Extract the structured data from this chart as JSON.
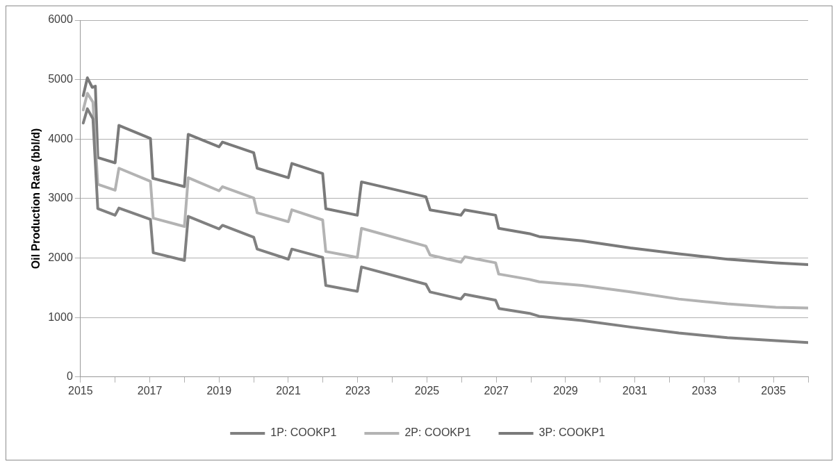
{
  "chart_data": {
    "type": "line",
    "ylabel": "Oil Production Rate (bbl/d)",
    "xlim": [
      2015,
      2036
    ],
    "xticks": [
      2015,
      {
        "value": 2016,
        "label": null
      },
      2017,
      {
        "value": 2018,
        "label": null
      },
      2019,
      {
        "value": 2020,
        "label": null
      },
      2021,
      {
        "value": 2022,
        "label": null
      },
      2023,
      {
        "value": 2024,
        "label": null
      },
      2025,
      {
        "value": 2026,
        "label": null
      },
      2027,
      {
        "value": 2028,
        "label": null
      },
      2029,
      {
        "value": 2030,
        "label": null
      },
      2031,
      {
        "value": 2032,
        "label": null
      },
      2033,
      {
        "value": 2034,
        "label": null
      },
      2035,
      {
        "value": 2036,
        "label": null
      }
    ],
    "ylim": [
      0,
      6000
    ],
    "yticks": [
      0,
      1000,
      2000,
      3000,
      4000,
      5000,
      6000
    ],
    "grid": "y",
    "legend": "bottom",
    "marker": "none",
    "line_style": "solid",
    "series": [
      {
        "name": "1P: COOKP1",
        "color": "#808080",
        "x": [
          2015.08,
          2015.2,
          2015.36,
          2015.5,
          2016.0,
          2016.11,
          2017.02,
          2017.1,
          2018.0,
          2018.11,
          2019.0,
          2019.1,
          2020.0,
          2020.1,
          2021.0,
          2021.1,
          2021.99,
          2022.08,
          2022.99,
          2023.11,
          2024.97,
          2025.09,
          2025.98,
          2026.09,
          2026.98,
          2027.08,
          2027.96,
          2028.24,
          2029.47,
          2030.87,
          2032.27,
          2033.67,
          2035.07,
          2036.0
        ],
        "values": [
          4270,
          4510,
          4340,
          2830,
          2720,
          2840,
          2650,
          2090,
          1960,
          2700,
          2490,
          2550,
          2350,
          2150,
          1980,
          2150,
          2010,
          1540,
          1440,
          1850,
          1560,
          1430,
          1310,
          1390,
          1290,
          1150,
          1070,
          1020,
          950,
          840,
          740,
          660,
          610,
          580
        ]
      },
      {
        "name": "2P: COOKP1",
        "color": "#b3b3b3",
        "x": [
          2015.08,
          2015.2,
          2015.36,
          2015.5,
          2016.0,
          2016.11,
          2017.02,
          2017.1,
          2018.0,
          2018.11,
          2019.0,
          2019.1,
          2020.0,
          2020.1,
          2021.0,
          2021.1,
          2021.99,
          2022.08,
          2022.99,
          2023.11,
          2024.97,
          2025.09,
          2025.98,
          2026.09,
          2026.98,
          2027.07,
          2027.96,
          2028.24,
          2029.47,
          2030.87,
          2032.27,
          2033.67,
          2035.07,
          2036.0
        ],
        "values": [
          4490,
          4770,
          4620,
          3240,
          3140,
          3510,
          3290,
          2670,
          2530,
          3350,
          3130,
          3200,
          3010,
          2760,
          2610,
          2810,
          2640,
          2110,
          2010,
          2500,
          2200,
          2050,
          1930,
          2020,
          1920,
          1730,
          1640,
          1600,
          1540,
          1430,
          1310,
          1230,
          1170,
          1160
        ]
      },
      {
        "name": "3P: COOKP1",
        "color": "#7a7a7a",
        "x": [
          2015.08,
          2015.2,
          2015.34,
          2015.43,
          2015.5,
          2016.0,
          2016.11,
          2017.02,
          2017.09,
          2018.0,
          2018.11,
          2019.0,
          2019.1,
          2020.0,
          2020.1,
          2021.0,
          2021.1,
          2021.99,
          2022.08,
          2022.99,
          2023.11,
          2024.97,
          2025.09,
          2025.98,
          2026.09,
          2026.98,
          2027.07,
          2027.96,
          2028.24,
          2029.47,
          2030.87,
          2032.27,
          2033.67,
          2035.07,
          2036.0
        ],
        "values": [
          4730,
          5030,
          4870,
          4890,
          3690,
          3600,
          4230,
          4010,
          3340,
          3200,
          4080,
          3870,
          3950,
          3770,
          3510,
          3350,
          3590,
          3420,
          2830,
          2720,
          3280,
          3030,
          2810,
          2720,
          2810,
          2720,
          2500,
          2410,
          2360,
          2290,
          2170,
          2070,
          1980,
          1920,
          1890
        ]
      }
    ]
  }
}
